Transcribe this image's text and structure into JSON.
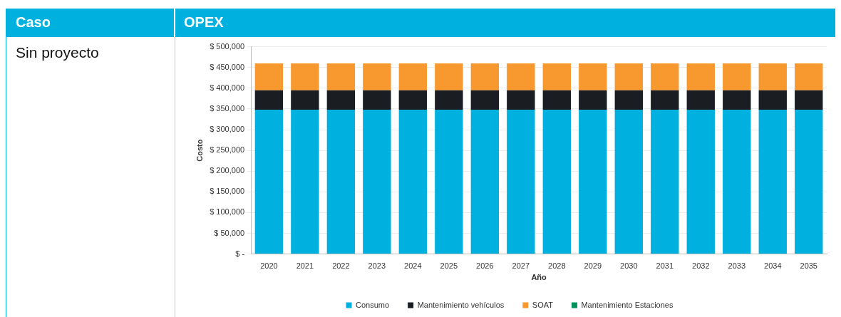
{
  "chart_data": {
    "type": "bar",
    "title": "OPEX",
    "annotations": [
      "Caso",
      "Sin proyecto"
    ],
    "xlabel": "Año",
    "ylabel": "Costo",
    "categories": [
      "2020",
      "2021",
      "2022",
      "2023",
      "2024",
      "2025",
      "2026",
      "2027",
      "2028",
      "2029",
      "2030",
      "2031",
      "2032",
      "2033",
      "2034",
      "2035"
    ],
    "stacked": true,
    "series": [
      {
        "name": "Consumo",
        "color": "#00b0de",
        "values": [
          348000,
          348000,
          348000,
          348000,
          348000,
          348000,
          348000,
          348000,
          348000,
          348000,
          348000,
          348000,
          348000,
          348000,
          348000,
          348000
        ]
      },
      {
        "name": "Mantenimiento vehículos",
        "color": "#1a1d22",
        "values": [
          47000,
          47000,
          47000,
          47000,
          47000,
          47000,
          47000,
          47000,
          47000,
          47000,
          47000,
          47000,
          47000,
          47000,
          47000,
          47000
        ]
      },
      {
        "name": "SOAT",
        "color": "#f7992f",
        "values": [
          65000,
          65000,
          65000,
          65000,
          65000,
          65000,
          65000,
          65000,
          65000,
          65000,
          65000,
          65000,
          65000,
          65000,
          65000,
          65000
        ]
      },
      {
        "name": "Mantenimiento Estaciones",
        "color": "#00915a",
        "values": [
          0,
          0,
          0,
          0,
          0,
          0,
          0,
          0,
          0,
          0,
          0,
          0,
          0,
          0,
          0,
          0
        ]
      }
    ],
    "ylim": [
      0,
      500000
    ],
    "yticks": [
      {
        "value": 0,
        "label": "$ -"
      },
      {
        "value": 50000,
        "label": "$ 50,000"
      },
      {
        "value": 100000,
        "label": "$ 100,000"
      },
      {
        "value": 150000,
        "label": "$ 150,000"
      },
      {
        "value": 200000,
        "label": "$ 200,000"
      },
      {
        "value": 250000,
        "label": "$ 250,000"
      },
      {
        "value": 300000,
        "label": "$ 300,000"
      },
      {
        "value": 350000,
        "label": "$ 350,000"
      },
      {
        "value": 400000,
        "label": "$ 400,000"
      },
      {
        "value": 450000,
        "label": "$ 450,000"
      },
      {
        "value": 500000,
        "label": "$ 500,000"
      }
    ],
    "grid": "y",
    "legend": "bottom"
  }
}
